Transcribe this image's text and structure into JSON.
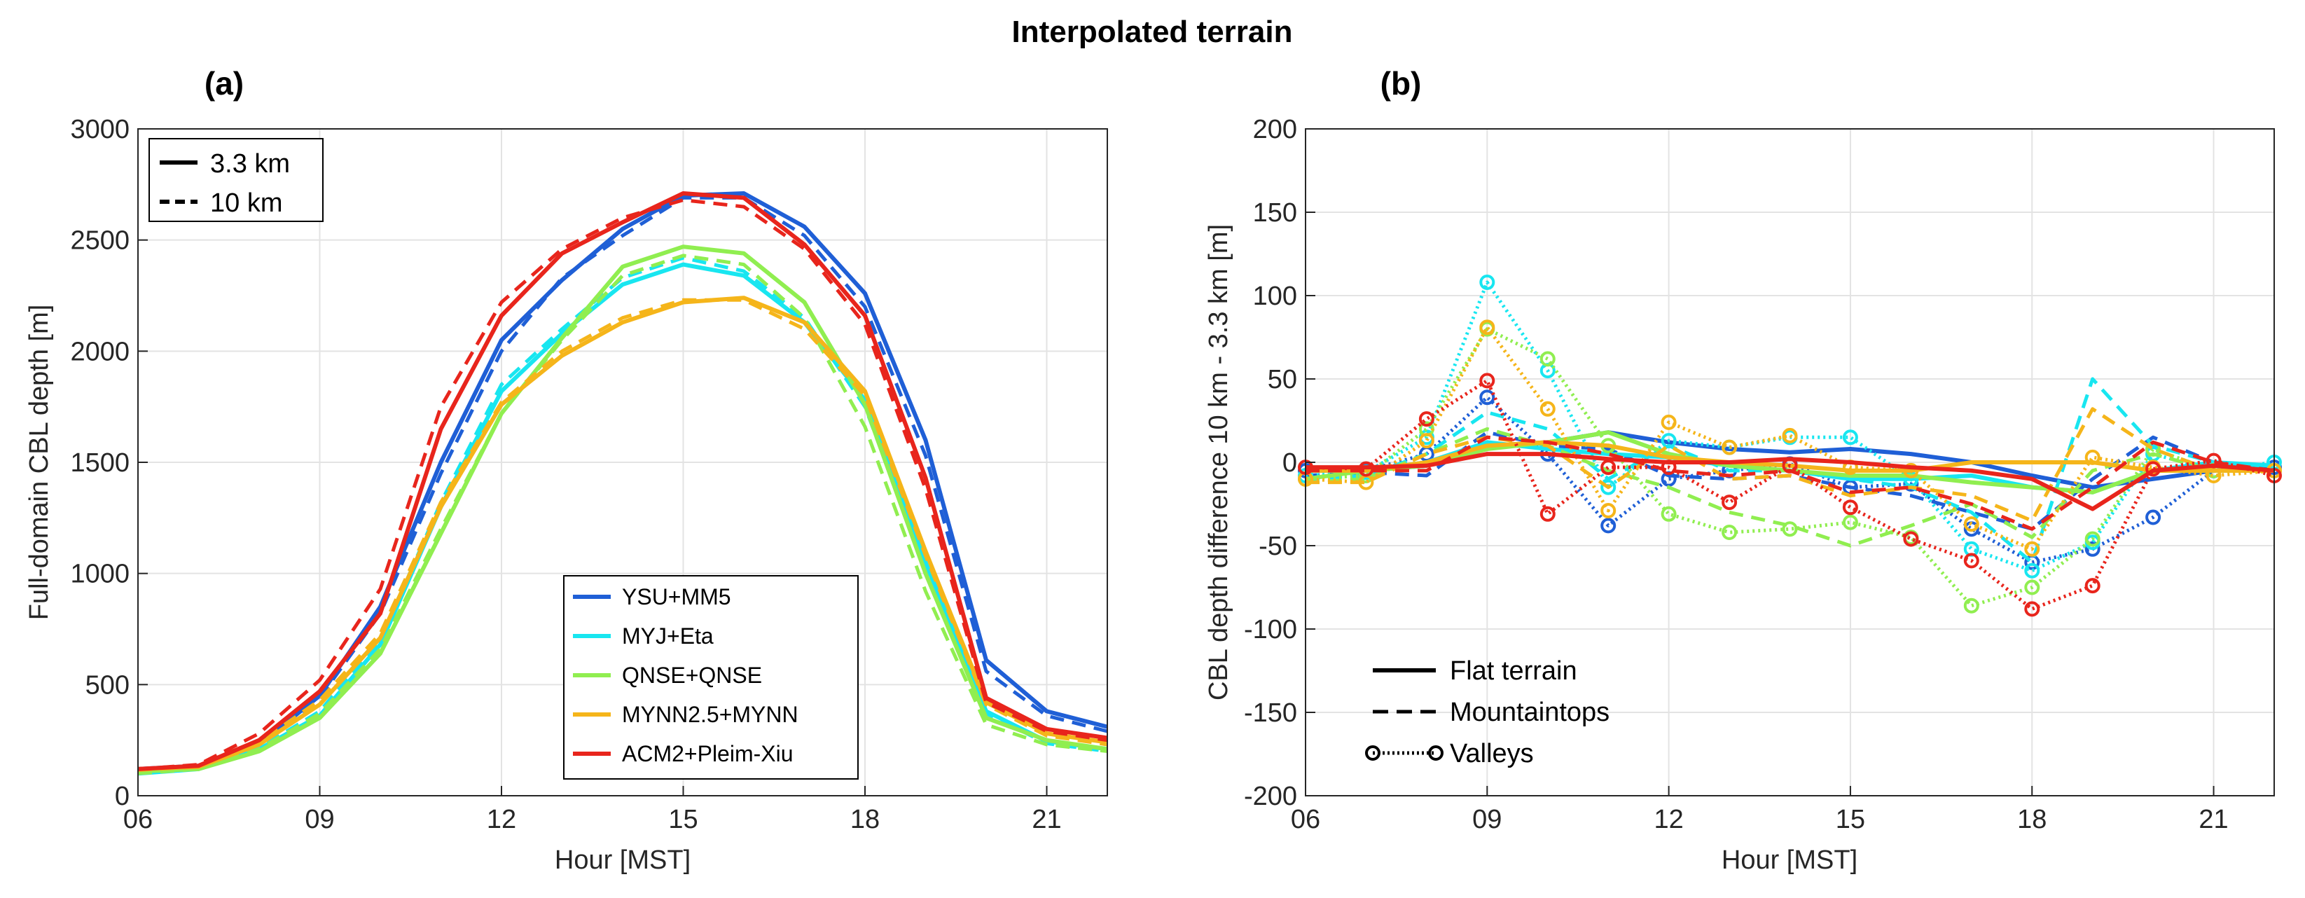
{
  "figure_title": "Interpolated terrain",
  "colors": {
    "YSU+MM5": "#1f5fd6",
    "MYJ+Eta": "#18e6f0",
    "QNSE+QNSE": "#90ee50",
    "MYNN2.5+MYNN": "#f5b51a",
    "ACM2+Pleim-Xiu": "#e8251c"
  },
  "chart_data": [
    {
      "panel_label": "(a)",
      "type": "line",
      "xlabel": "Hour [MST]",
      "ylabel": "Full-domain CBL depth [m]",
      "xlim": [
        6,
        22
      ],
      "ylim": [
        0,
        3000
      ],
      "xticks": [
        6,
        9,
        12,
        15,
        18,
        21
      ],
      "xtick_labels": [
        "06",
        "09",
        "12",
        "15",
        "18",
        "21"
      ],
      "yticks": [
        0,
        500,
        1000,
        1500,
        2000,
        2500,
        3000
      ],
      "ytick_labels": [
        "0",
        "500",
        "1000",
        "1500",
        "2000",
        "2500",
        "3000"
      ],
      "grid": true,
      "line_legend": {
        "placement": "top-left",
        "entries": [
          {
            "label": "3.3 km",
            "style": "solid"
          },
          {
            "label": "10 km",
            "style": "dashed"
          }
        ]
      },
      "legend": {
        "placement": "bottom-center",
        "entries": [
          "YSU+MM5",
          "MYJ+Eta",
          "QNSE+QNSE",
          "MYNN2.5+MYNN",
          "ACM2+Pleim-Xiu"
        ]
      },
      "x": [
        6,
        7,
        8,
        9,
        10,
        11,
        12,
        13,
        14,
        15,
        16,
        17,
        18,
        19,
        20,
        21,
        22
      ],
      "series": [
        {
          "name": "YSU+MM5",
          "resolution": "3.3 km",
          "style": "solid",
          "values": [
            120,
            135,
            230,
            450,
            850,
            1500,
            2050,
            2320,
            2550,
            2700,
            2710,
            2560,
            2260,
            1600,
            610,
            380,
            310
          ]
        },
        {
          "name": "YSU+MM5",
          "resolution": "10 km",
          "style": "dashed",
          "values": [
            115,
            135,
            225,
            440,
            820,
            1450,
            2000,
            2330,
            2520,
            2690,
            2690,
            2520,
            2200,
            1530,
            560,
            360,
            290
          ]
        },
        {
          "name": "MYJ+Eta",
          "resolution": "3.3 km",
          "style": "solid",
          "values": [
            100,
            120,
            210,
            360,
            680,
            1300,
            1820,
            2080,
            2300,
            2390,
            2340,
            2130,
            1780,
            1050,
            380,
            245,
            210
          ]
        },
        {
          "name": "MYJ+Eta",
          "resolution": "10 km",
          "style": "dashed",
          "values": [
            100,
            120,
            215,
            380,
            700,
            1320,
            1850,
            2100,
            2330,
            2420,
            2360,
            2150,
            1750,
            1020,
            370,
            235,
            200
          ]
        },
        {
          "name": "QNSE+QNSE",
          "resolution": "3.3 km",
          "style": "solid",
          "values": [
            110,
            120,
            200,
            350,
            640,
            1180,
            1720,
            2060,
            2380,
            2470,
            2440,
            2220,
            1760,
            1000,
            350,
            250,
            210
          ]
        },
        {
          "name": "QNSE+QNSE",
          "resolution": "10 km",
          "style": "dashed",
          "values": [
            100,
            120,
            210,
            370,
            660,
            1200,
            1720,
            2050,
            2340,
            2430,
            2390,
            2150,
            1660,
            920,
            320,
            230,
            200
          ]
        },
        {
          "name": "MYNN2.5+MYNN",
          "resolution": "3.3 km",
          "style": "solid",
          "values": [
            120,
            130,
            230,
            410,
            710,
            1300,
            1760,
            1980,
            2130,
            2220,
            2240,
            2130,
            1820,
            1100,
            420,
            280,
            240
          ]
        },
        {
          "name": "MYNN2.5+MYNN",
          "resolution": "10 km",
          "style": "dashed",
          "values": [
            115,
            130,
            240,
            430,
            730,
            1320,
            1770,
            2000,
            2150,
            2230,
            2230,
            2100,
            1800,
            1080,
            410,
            270,
            230
          ]
        },
        {
          "name": "ACM2+Pleim-Xiu",
          "resolution": "3.3 km",
          "style": "solid",
          "values": [
            120,
            135,
            250,
            470,
            820,
            1650,
            2160,
            2440,
            2580,
            2710,
            2690,
            2480,
            2160,
            1430,
            440,
            300,
            260
          ]
        },
        {
          "name": "ACM2+Pleim-Xiu",
          "resolution": "10 km",
          "style": "dashed",
          "values": [
            120,
            140,
            280,
            520,
            930,
            1750,
            2220,
            2460,
            2600,
            2680,
            2650,
            2460,
            2120,
            1380,
            420,
            290,
            250
          ]
        }
      ]
    },
    {
      "panel_label": "(b)",
      "type": "line",
      "xlabel": "Hour [MST]",
      "ylabel": "CBL depth difference 10 km - 3.3 km [m]",
      "xlim": [
        6,
        22
      ],
      "ylim": [
        -200,
        200
      ],
      "xticks": [
        6,
        9,
        12,
        15,
        18,
        21
      ],
      "xtick_labels": [
        "06",
        "09",
        "12",
        "15",
        "18",
        "21"
      ],
      "yticks": [
        -200,
        -150,
        -100,
        -50,
        0,
        50,
        100,
        150,
        200
      ],
      "ytick_labels": [
        "-200",
        "-150",
        "-100",
        "-50",
        "0",
        "50",
        "100",
        "150",
        "200"
      ],
      "grid": true,
      "legend": {
        "placement": "bottom-left",
        "entries": [
          {
            "label": "Flat terrain",
            "style": "solid"
          },
          {
            "label": "Mountaintops",
            "style": "dashed"
          },
          {
            "label": "Valleys",
            "style": "dotted-circle"
          }
        ]
      },
      "x": [
        6,
        7,
        8,
        9,
        10,
        11,
        12,
        13,
        14,
        15,
        16,
        17,
        18,
        19,
        20,
        21,
        22
      ],
      "series": [
        {
          "name": "YSU+MM5",
          "terrain": "Flat terrain",
          "style": "solid",
          "values": [
            -5,
            -5,
            -2,
            10,
            12,
            18,
            12,
            8,
            6,
            8,
            5,
            0,
            -8,
            -15,
            -10,
            -5,
            -3
          ]
        },
        {
          "name": "YSU+MM5",
          "terrain": "Mountaintops",
          "style": "dashed",
          "values": [
            -8,
            -6,
            -8,
            18,
            10,
            8,
            -8,
            -10,
            -8,
            -15,
            -20,
            -30,
            -40,
            -10,
            15,
            0,
            -5
          ]
        },
        {
          "name": "YSU+MM5",
          "terrain": "Valleys",
          "style": "dotted-circle",
          "values": [
            -5,
            -5,
            5,
            39,
            5,
            -38,
            -10,
            -5,
            -1,
            -15,
            -13,
            -40,
            -60,
            -52,
            -33,
            -5,
            -3
          ]
        },
        {
          "name": "MYJ+Eta",
          "terrain": "Flat terrain",
          "style": "solid",
          "values": [
            -5,
            -5,
            0,
            12,
            8,
            5,
            3,
            -2,
            -5,
            -10,
            -10,
            -8,
            -15,
            -18,
            -5,
            0,
            -2
          ]
        },
        {
          "name": "MYJ+Eta",
          "terrain": "Mountaintops",
          "style": "dashed",
          "values": [
            -10,
            -8,
            5,
            30,
            20,
            -10,
            10,
            -5,
            -5,
            -10,
            -15,
            -30,
            -60,
            50,
            10,
            0,
            -5
          ]
        },
        {
          "name": "MYJ+Eta",
          "terrain": "Valleys",
          "style": "dotted-circle",
          "values": [
            -8,
            -6,
            15,
            108,
            55,
            -15,
            13,
            9,
            15,
            15,
            -10,
            -52,
            -65,
            -48,
            5,
            -5,
            0
          ]
        },
        {
          "name": "QNSE+QNSE",
          "terrain": "Flat terrain",
          "style": "solid",
          "values": [
            -10,
            -5,
            -2,
            8,
            12,
            18,
            5,
            -2,
            -5,
            -8,
            -8,
            -12,
            -15,
            -18,
            -5,
            -5,
            -5
          ]
        },
        {
          "name": "QNSE+QNSE",
          "terrain": "Mountaintops",
          "style": "dashed",
          "values": [
            -12,
            -10,
            5,
            20,
            10,
            -5,
            -15,
            -30,
            -38,
            -50,
            -38,
            -25,
            -45,
            -5,
            5,
            -5,
            -5
          ]
        },
        {
          "name": "QNSE+QNSE",
          "terrain": "Valleys",
          "style": "dotted-circle",
          "values": [
            -10,
            -8,
            20,
            80,
            62,
            10,
            -31,
            -42,
            -40,
            -36,
            -45,
            -86,
            -75,
            -46,
            8,
            -5,
            -5
          ]
        },
        {
          "name": "MYNN2.5+MYNN",
          "terrain": "Flat terrain",
          "style": "solid",
          "values": [
            -5,
            -5,
            0,
            10,
            12,
            10,
            3,
            0,
            -2,
            -5,
            -5,
            0,
            0,
            0,
            -5,
            -5,
            -5
          ]
        },
        {
          "name": "MYNN2.5+MYNN",
          "terrain": "Mountaintops",
          "style": "dashed",
          "values": [
            -12,
            -12,
            5,
            15,
            10,
            -15,
            10,
            -10,
            -8,
            -20,
            -15,
            -20,
            -35,
            32,
            8,
            -5,
            -5
          ]
        },
        {
          "name": "MYNN2.5+MYNN",
          "terrain": "Valleys",
          "style": "dotted-circle",
          "values": [
            -10,
            -12,
            13,
            81,
            32,
            -29,
            24,
            9,
            16,
            -3,
            -5,
            -37,
            -52,
            3,
            -3,
            -8,
            -5
          ]
        },
        {
          "name": "ACM2+Pleim-Xiu",
          "terrain": "Flat terrain",
          "style": "solid",
          "values": [
            -3,
            -3,
            -2,
            5,
            5,
            2,
            0,
            0,
            2,
            0,
            -3,
            -5,
            -10,
            -28,
            -5,
            -2,
            -5
          ]
        },
        {
          "name": "ACM2+Pleim-Xiu",
          "terrain": "Mountaintops",
          "style": "dashed",
          "values": [
            -5,
            -5,
            -5,
            15,
            12,
            5,
            -5,
            -8,
            -5,
            -18,
            -15,
            -25,
            -40,
            -15,
            12,
            0,
            -5
          ]
        },
        {
          "name": "ACM2+Pleim-Xiu",
          "terrain": "Valleys",
          "style": "dotted-circle",
          "values": [
            -3,
            -4,
            26,
            49,
            -31,
            -3,
            -3,
            -24,
            -2,
            -27,
            -46,
            -59,
            -88,
            -74,
            -4,
            1,
            -8
          ]
        }
      ]
    }
  ]
}
